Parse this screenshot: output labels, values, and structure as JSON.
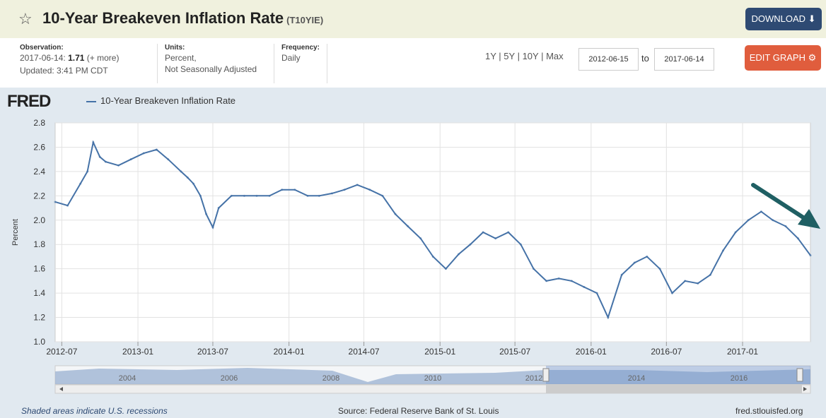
{
  "header": {
    "title": "10-Year Breakeven Inflation Rate",
    "series_id": "(T10YIE)",
    "download_label": "DOWNLOAD",
    "edit_label": "EDIT GRAPH"
  },
  "meta": {
    "observation_label": "Observation:",
    "observation_date": "2017-06-14:",
    "observation_value": "1.71",
    "observation_more": "(+ more)",
    "updated": "Updated: 3:41 PM CDT",
    "units_label": "Units:",
    "units_line1": "Percent,",
    "units_line2": "Not Seasonally Adjusted",
    "frequency_label": "Frequency:",
    "frequency": "Daily"
  },
  "range_buttons": [
    "1Y",
    "5Y",
    "10Y",
    "Max"
  ],
  "date_from": "2012-06-15",
  "date_to": "2017-06-14",
  "to_label": "to",
  "logo": "FRED",
  "footer": {
    "recession_note": "Shaded areas indicate U.S. recessions",
    "source": "Source: Federal Reserve Bank of St. Louis",
    "site": "fred.stlouisfed.org"
  },
  "colors": {
    "line": "#4572a7",
    "download": "#2e4a73",
    "edit": "#e05d3d",
    "arrow": "#1f5f63"
  },
  "navigator": {
    "years": [
      "2004",
      "2006",
      "2008",
      "2010",
      "2012",
      "2014",
      "2016"
    ]
  },
  "chart_data": {
    "type": "line",
    "title": "",
    "legend": "10-Year Breakeven Inflation Rate",
    "xlabel": "",
    "ylabel": "Percent",
    "ylim": [
      1.0,
      2.8
    ],
    "yticks": [
      "1.0",
      "1.2",
      "1.4",
      "1.6",
      "1.8",
      "2.0",
      "2.2",
      "2.4",
      "2.6",
      "2.8"
    ],
    "xticks": [
      "2012-07",
      "2013-01",
      "2013-07",
      "2014-01",
      "2014-07",
      "2015-01",
      "2015-07",
      "2016-01",
      "2016-07",
      "2017-01"
    ],
    "grid": true,
    "series": [
      {
        "name": "10-Year Breakeven Inflation Rate",
        "x": [
          "2012-06-15",
          "2012-07-15",
          "2012-08-15",
          "2012-09-01",
          "2012-09-15",
          "2012-10-01",
          "2012-10-15",
          "2012-11-15",
          "2012-12-15",
          "2013-01-15",
          "2013-02-15",
          "2013-03-15",
          "2013-04-15",
          "2013-05-01",
          "2013-05-15",
          "2013-06-01",
          "2013-06-15",
          "2013-07-01",
          "2013-07-15",
          "2013-08-15",
          "2013-09-15",
          "2013-10-15",
          "2013-11-15",
          "2013-12-15",
          "2014-01-15",
          "2014-02-15",
          "2014-03-15",
          "2014-04-15",
          "2014-05-15",
          "2014-06-15",
          "2014-07-15",
          "2014-08-15",
          "2014-09-15",
          "2014-10-15",
          "2014-11-15",
          "2014-12-15",
          "2015-01-15",
          "2015-02-15",
          "2015-03-15",
          "2015-04-15",
          "2015-05-15",
          "2015-06-15",
          "2015-07-15",
          "2015-08-15",
          "2015-09-15",
          "2015-10-15",
          "2015-11-15",
          "2015-12-15",
          "2016-01-15",
          "2016-02-11",
          "2016-03-15",
          "2016-04-15",
          "2016-05-15",
          "2016-06-15",
          "2016-07-15",
          "2016-08-15",
          "2016-09-15",
          "2016-10-15",
          "2016-11-15",
          "2016-12-15",
          "2017-01-15",
          "2017-02-15",
          "2017-03-15",
          "2017-04-15",
          "2017-05-15",
          "2017-06-14"
        ],
        "y": [
          2.15,
          2.12,
          2.3,
          2.4,
          2.64,
          2.52,
          2.48,
          2.45,
          2.5,
          2.55,
          2.58,
          2.5,
          2.4,
          2.35,
          2.3,
          2.2,
          2.05,
          1.94,
          2.1,
          2.2,
          2.2,
          2.2,
          2.2,
          2.25,
          2.25,
          2.2,
          2.2,
          2.22,
          2.25,
          2.29,
          2.25,
          2.2,
          2.05,
          1.95,
          1.85,
          1.7,
          1.6,
          1.72,
          1.8,
          1.9,
          1.85,
          1.9,
          1.8,
          1.6,
          1.5,
          1.52,
          1.5,
          1.45,
          1.4,
          1.2,
          1.55,
          1.65,
          1.7,
          1.6,
          1.4,
          1.5,
          1.48,
          1.55,
          1.75,
          1.9,
          2.0,
          2.07,
          2.0,
          1.95,
          1.85,
          1.71
        ]
      }
    ]
  }
}
